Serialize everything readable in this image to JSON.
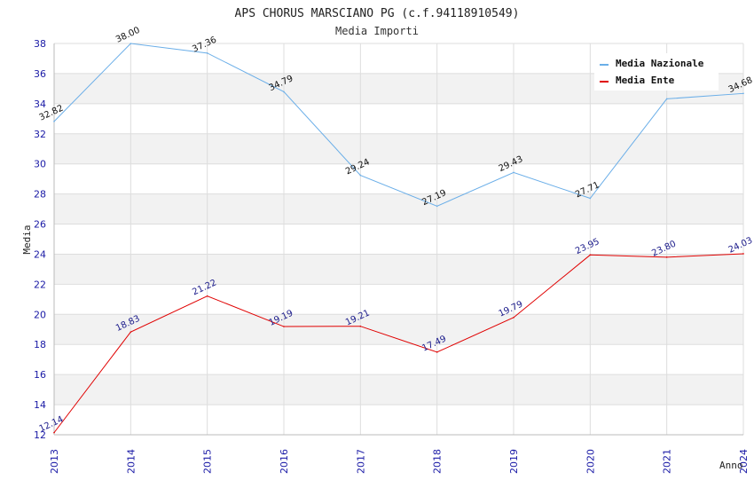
{
  "chart_data": {
    "type": "line",
    "title": "APS CHORUS MARSCIANO PG (c.f.94118910549)",
    "subtitle": "Media Importi",
    "xlabel": "Anno",
    "ylabel": "Media",
    "x": [
      "2013",
      "2014",
      "2015",
      "2016",
      "2017",
      "2018",
      "2019",
      "2020",
      "2021",
      "2024"
    ],
    "ylim": [
      12,
      38
    ],
    "yticks": [
      12,
      14,
      16,
      18,
      20,
      22,
      24,
      26,
      28,
      30,
      32,
      34,
      36,
      38
    ],
    "grid": "horizontal alternating bands",
    "legend_position": "top-right",
    "series": [
      {
        "name": "Media Nazionale",
        "color": "#6aaee8",
        "values": [
          32.82,
          38.0,
          37.36,
          34.79,
          29.24,
          27.19,
          29.43,
          27.71,
          34.32,
          34.68
        ],
        "labels": [
          "32.82",
          "38.00",
          "37.36",
          "34.79",
          "29.24",
          "27.19",
          "29.43",
          "27.71",
          "",
          "34.68"
        ]
      },
      {
        "name": "Media Ente",
        "color": "#e00000",
        "values": [
          12.14,
          18.83,
          21.22,
          19.19,
          19.21,
          17.49,
          19.79,
          23.95,
          23.8,
          24.03
        ],
        "labels": [
          "12.14",
          "18.83",
          "21.22",
          "19.19",
          "19.21",
          "17.49",
          "19.79",
          "23.95",
          "23.80",
          "24.03"
        ]
      }
    ]
  }
}
